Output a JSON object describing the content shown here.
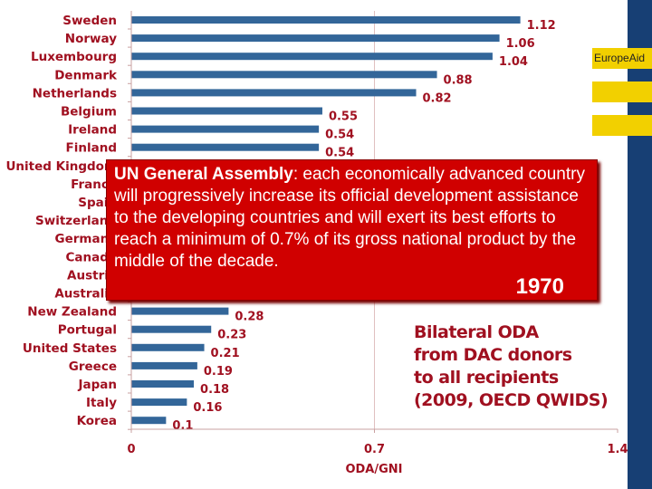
{
  "chart_data": {
    "type": "bar",
    "orientation": "horizontal",
    "categories": [
      "Sweden",
      "Norway",
      "Luxembourg",
      "Denmark",
      "Netherlands",
      "Belgium",
      "Ireland",
      "Finland",
      "United Kingdom",
      "France",
      "Spain",
      "Switzerland",
      "Germany",
      "Canada",
      "Austria",
      "Australia",
      "New Zealand",
      "Portugal",
      "United States",
      "Greece",
      "Japan",
      "Italy",
      "Korea"
    ],
    "values": [
      1.12,
      1.06,
      1.04,
      0.88,
      0.82,
      0.55,
      0.54,
      0.54,
      null,
      null,
      null,
      null,
      null,
      null,
      null,
      null,
      0.28,
      0.23,
      0.21,
      0.19,
      0.18,
      0.16,
      0.1
    ],
    "data_labels": [
      "1.12",
      "1.06",
      "1.04",
      "0.88",
      "0.82",
      "0.55",
      "0.54",
      "0.54",
      "",
      "",
      "",
      "",
      "",
      "",
      "",
      "",
      "0.28",
      "0.23",
      "0.21",
      "0.19",
      "0.18",
      "0.16",
      "0.1"
    ],
    "xlabel": "ODA/GNI",
    "xlim": [
      0,
      1.4
    ],
    "xticks": [
      "0",
      "0.7",
      "1.4"
    ],
    "gridlines": [
      0.7
    ],
    "bar_color": "#336699",
    "label_color": "#a01020"
  },
  "callout": {
    "title": "UN General Assembly",
    "text": ": each economically advanced country will progressively increase its official development assistance to the developing countries and will exert its best efforts to reach a minimum of 0.7% of its gross national product by the middle of the decade.",
    "year": "1970",
    "color": "#d00000"
  },
  "note": {
    "lines": [
      "Bilateral ODA",
      "from DAC donors",
      "to all recipients",
      "(2009, OECD QWIDS)"
    ]
  },
  "branding": {
    "label": "EuropeAid",
    "blue": "#173f74",
    "yellow": "#f2d000"
  }
}
